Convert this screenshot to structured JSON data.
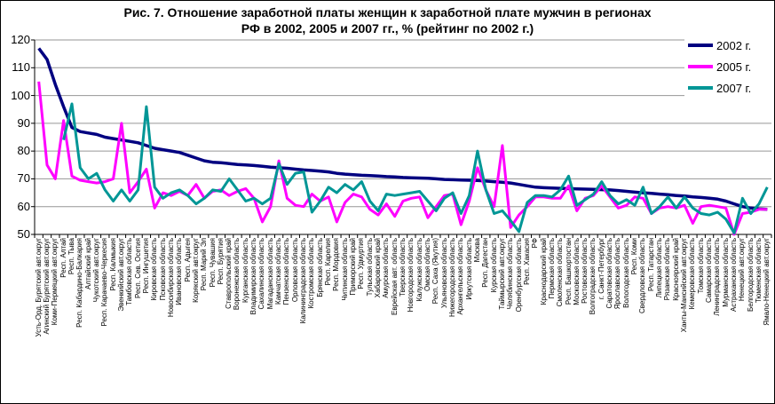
{
  "chart_data": {
    "type": "line",
    "title_line1": "Рис. 7. Отношение заработной платы женщин к заработной плате мужчин в регионах",
    "title_line2": "РФ в 2002, 2005 и 2007 гг., % (рейтинг по 2002 г.)",
    "ylim": [
      50,
      120
    ],
    "y_ticks": [
      50,
      60,
      70,
      80,
      90,
      100,
      110,
      120
    ],
    "grid": "horizontal",
    "gridline_color": "#969696",
    "axis_color": "#000000",
    "legend_position": "top-right",
    "categories": [
      "Усть-Орд. Бурятский авт.округ",
      "Агинский Бурятский авт.округ",
      "Коми-Пермяцкий авт.округ",
      "Респ. Алтай",
      "Респ. Тыва",
      "Респ. Кабардино-Балкария",
      "Алтайский край",
      "Чукотский авт.округ",
      "Респ. Карачаево-Черкесия",
      "Респ. Калмыкия",
      "Эвенкийский авт.округ",
      "Тамбовская область",
      "Респ. Сев. Осетия",
      "Респ. Ингушетия",
      "Кировская область",
      "Псковская область",
      "Новосибирская область",
      "Ивановская область",
      "Респ. Адыгея",
      "Корякский авт.округ",
      "Респ. Марий Эл",
      "Респ. Чувашия",
      "Респ. Бурятия",
      "Ставропольский край",
      "Воронежская область",
      "Курганская область",
      "Владимирская область",
      "Сахалинская область",
      "Магаданская область",
      "Камчатская область",
      "Пензенская область",
      "Орловская область",
      "Калининградская область",
      "Костромская область",
      "Брянская область",
      "Респ. Карелия",
      "Респ. Мордовия",
      "Читинская область",
      "Приморский край",
      "Респ. Удмуртия",
      "Тульская область",
      "Хабаровский край",
      "Амурская область",
      "Еврейская авт. область",
      "Тверская область",
      "Новгородская область",
      "Калужская область",
      "Омская область",
      "Респ. Саха (Якутия)",
      "Ульяновская область",
      "Нижегородская область",
      "Архангельская область",
      "Иркутская область",
      "Москва",
      "Респ. Дагестан",
      "Курская область",
      "Таймырский авт.округ",
      "Челябинская область",
      "Оренбургская область",
      "Респ. Хакасия",
      "РФ",
      "Краснодарский край",
      "Пермская область",
      "Смоленская область",
      "Респ. Башкортостан",
      "Московская область",
      "Ростовская область",
      "Волгоградская область",
      "г. Санкт-Петербург",
      "Саратовская область",
      "Ярославская область",
      "Вологодская область",
      "Респ. Коми",
      "Свердловская область",
      "Респ. Татарстан",
      "Липецкая область",
      "Рязанская область",
      "Красноярский край",
      "Ханты-Мансийский авт.округ",
      "Кемеровская область",
      "Томская область",
      "Самарская область",
      "Ленинградская область",
      "Мурманская область",
      "Астраханская область",
      "Ненецкий авт.округ",
      "Белгородская область",
      "Тюменская область",
      "Ямало-Ненецкий авт.округ"
    ],
    "series": [
      {
        "name": "2002 г.",
        "color": "#000080",
        "values": [
          117,
          113,
          104,
          96,
          88.5,
          87,
          86.5,
          86,
          85,
          84.5,
          84,
          83.5,
          83,
          82,
          81,
          80.5,
          80,
          79.5,
          78.5,
          77.5,
          76.5,
          76,
          75.8,
          75.5,
          75.2,
          75,
          74.8,
          74.5,
          74.2,
          74,
          73.8,
          73.5,
          73.2,
          73,
          72.8,
          72.5,
          72,
          71.7,
          71.5,
          71.3,
          71.2,
          71,
          70.8,
          70.7,
          70.5,
          70.4,
          70.3,
          70.2,
          70,
          69.8,
          69.7,
          69.6,
          69.5,
          69.4,
          69.2,
          69,
          68.8,
          68.5,
          68,
          67.5,
          67,
          66.8,
          66.7,
          66.6,
          66.5,
          66.4,
          66.3,
          66.2,
          66.1,
          66,
          65.8,
          65.5,
          65.2,
          65,
          64.8,
          64.5,
          64.3,
          64,
          63.8,
          63.5,
          63.3,
          63,
          62.7,
          62,
          61,
          60,
          59.5,
          59.2,
          59
        ]
      },
      {
        "name": "2005 г.",
        "color": "#FF00FF",
        "values": [
          105,
          75,
          70,
          91,
          71,
          69.5,
          69,
          68.5,
          69,
          70,
          90,
          65,
          69,
          73.5,
          59.5,
          65,
          64,
          65.5,
          64,
          68,
          63,
          65.5,
          66,
          64,
          65.5,
          66.5,
          63,
          54.5,
          60,
          76.5,
          63,
          60.5,
          60,
          64.5,
          62,
          63.5,
          54.5,
          61.5,
          64.5,
          63.5,
          59,
          57,
          61,
          56.5,
          62,
          63,
          63.5,
          56,
          60,
          64,
          64.5,
          53.5,
          62,
          74,
          66,
          60,
          82,
          52.5,
          57,
          60,
          63.5,
          63.5,
          63,
          63,
          67.5,
          58.5,
          63,
          64,
          67.5,
          63.5,
          59.5,
          60.5,
          63.5,
          63,
          57.5,
          59.5,
          60,
          59.5,
          60.5,
          54,
          60,
          60.5,
          60,
          59.5,
          50,
          57.5,
          58,
          59,
          59
        ]
      },
      {
        "name": "2007 г.",
        "color": "#009696",
        "values": [
          null,
          null,
          null,
          84,
          97,
          74,
          70,
          72,
          66,
          62,
          66,
          62,
          66,
          96,
          67,
          63,
          65,
          66,
          64,
          61,
          63,
          66,
          65.5,
          70,
          66,
          62,
          63,
          61,
          63,
          75.5,
          68,
          72,
          72.5,
          58,
          62,
          67,
          65,
          68,
          66,
          69,
          62,
          58.5,
          64.5,
          64,
          64.5,
          65,
          65.5,
          62,
          58.5,
          63,
          65,
          57.5,
          64,
          80,
          66,
          57.5,
          58.5,
          55,
          51,
          61.5,
          64,
          64,
          63.5,
          66,
          71,
          60.5,
          62.5,
          64.5,
          69,
          64,
          61,
          62.5,
          60.5,
          67,
          57.5,
          60,
          63.5,
          59.5,
          63.5,
          59.5,
          57.5,
          57,
          58,
          55.5,
          50.5,
          63,
          57.5,
          61,
          67
        ]
      }
    ]
  }
}
